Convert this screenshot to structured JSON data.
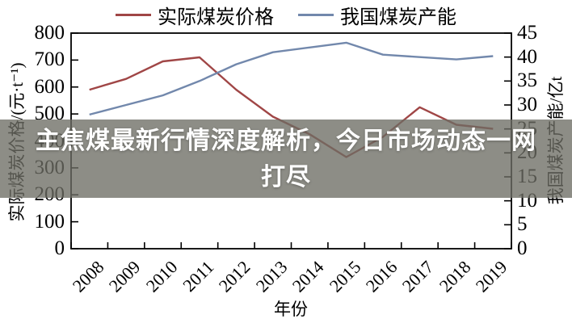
{
  "legend": {
    "items": [
      {
        "label": "实际煤炭价格",
        "color": "#A04646"
      },
      {
        "label": "我国煤炭产能",
        "color": "#7288AC"
      }
    ]
  },
  "overlay": {
    "line1": "主焦煤最新行情深度解析，今日市场动态一网",
    "line2": "打尽",
    "bg_color": "rgba(109,109,100,0.78)",
    "text_color": "#ffffff"
  },
  "chart_data": {
    "type": "line",
    "title": "",
    "categories": [
      "2008",
      "2009",
      "2010",
      "2011",
      "2012",
      "2013",
      "2014",
      "2015",
      "2016",
      "2017",
      "2018",
      "2019"
    ],
    "series": [
      {
        "name": "实际煤炭价格",
        "axis": "left",
        "color": "#A04646",
        "values": [
          590,
          630,
          695,
          710,
          590,
          490,
          425,
          340,
          415,
          525,
          460,
          445
        ]
      },
      {
        "name": "我国煤炭产能",
        "axis": "right",
        "color": "#7288AC",
        "values": [
          28,
          30,
          32,
          35,
          38.5,
          41,
          42,
          43,
          40.5,
          40,
          39.5,
          40.2
        ]
      }
    ],
    "left_axis": {
      "label": "实际煤炭价格/(元·t⁻¹)",
      "min": 0,
      "max": 800,
      "step": 100,
      "ticks": [
        "0",
        "100",
        "200",
        "300",
        "400",
        "500",
        "600",
        "700",
        "800"
      ]
    },
    "right_axis": {
      "label": "我国煤炭产能/亿t",
      "min": 0,
      "max": 45,
      "step": 5,
      "ticks": [
        "0",
        "5",
        "10",
        "15",
        "20",
        "25",
        "30",
        "35",
        "40",
        "45"
      ]
    },
    "x_axis": {
      "label": "年份"
    },
    "grid": false,
    "legend_position": "top",
    "axis_color": "#000000"
  }
}
